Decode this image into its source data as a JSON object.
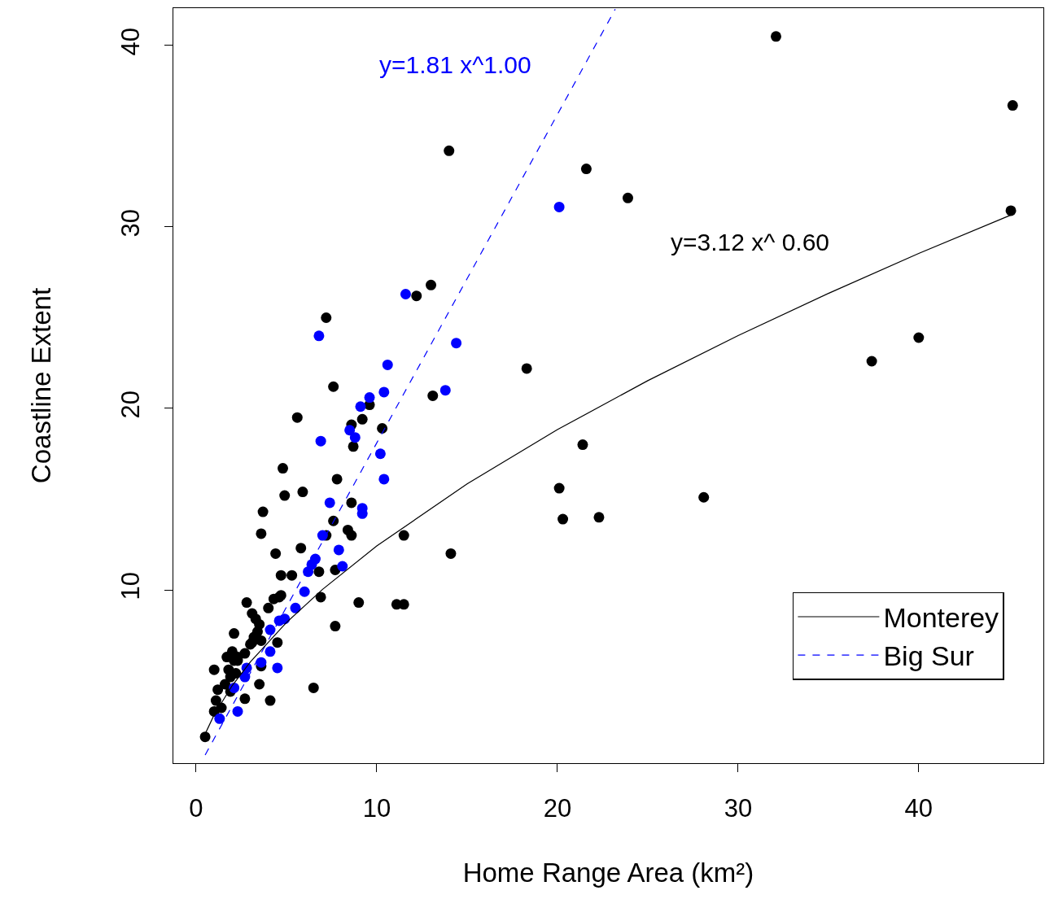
{
  "chart_data": {
    "type": "scatter",
    "xlabel": "Home Range Area (km²)",
    "ylabel": "Coastline Extent",
    "xlim": [
      -1.26,
      46.9
    ],
    "ylim": [
      0.45,
      42.06
    ],
    "xticks": [
      0,
      10,
      20,
      30,
      40
    ],
    "yticks": [
      10,
      20,
      30,
      40
    ],
    "grid": false,
    "legend": "bottom right",
    "marker": "circle",
    "series": [
      {
        "type": "scatter",
        "color": "#000000",
        "x": [
          32.1,
          45.2,
          45.1,
          14.0,
          21.6,
          23.9,
          40.0,
          37.4,
          18.3,
          21.4,
          20.1,
          20.3,
          22.3,
          28.1,
          14.1,
          11.5,
          11.1,
          11.5,
          13.0,
          12.2,
          13.1,
          10.3,
          7.2,
          7.6,
          5.6,
          4.8,
          4.9,
          5.9,
          3.7,
          3.6,
          7.8,
          8.6,
          8.7,
          9.2,
          9.6,
          8.6,
          7.6,
          8.4,
          8.6,
          7.2,
          5.8,
          4.4,
          6.8,
          7.7,
          5.3,
          4.7,
          6.9,
          9.0,
          7.7,
          6.5,
          4.1,
          4.5,
          4.6,
          2.8,
          3.1,
          3.3,
          3.5,
          4.0,
          4.3,
          4.7,
          3.4,
          3.2,
          3.6,
          3.1,
          3.0,
          2.1,
          2.7,
          2.3,
          2.0,
          1.7,
          2.1,
          2.3,
          1.0,
          1.8,
          2.2,
          1.9,
          1.6,
          1.2,
          1.9,
          3.6,
          3.5,
          2.7,
          1.1,
          1.4,
          1.0,
          0.5
        ],
        "values": [
          40.5,
          36.7,
          30.9,
          34.2,
          33.2,
          31.6,
          23.9,
          22.6,
          22.2,
          18.0,
          15.6,
          13.9,
          14.0,
          15.1,
          12.0,
          13.0,
          9.2,
          9.2,
          26.8,
          26.2,
          20.7,
          18.9,
          25.0,
          21.2,
          19.5,
          16.7,
          15.2,
          15.4,
          14.3,
          13.1,
          16.1,
          19.1,
          17.9,
          19.4,
          20.2,
          14.8,
          13.8,
          13.3,
          13.0,
          13.0,
          12.3,
          12.0,
          11.0,
          11.1,
          10.8,
          10.8,
          9.6,
          9.3,
          8.0,
          4.6,
          3.9,
          7.1,
          9.6,
          9.3,
          8.7,
          8.4,
          8.1,
          9.0,
          9.5,
          9.7,
          7.7,
          7.4,
          7.2,
          7.1,
          7.0,
          7.6,
          6.5,
          6.3,
          6.6,
          6.3,
          6.1,
          6.1,
          5.6,
          5.6,
          5.4,
          5.2,
          4.8,
          4.5,
          4.4,
          5.8,
          4.8,
          4.0,
          3.9,
          3.5,
          3.3,
          1.9
        ]
      },
      {
        "type": "scatter",
        "color": "#0000ff",
        "x": [
          20.1,
          11.6,
          14.4,
          10.6,
          13.8,
          10.4,
          9.6,
          9.1,
          6.8,
          6.9,
          8.5,
          8.8,
          10.2,
          10.4,
          7.4,
          9.2,
          9.2,
          7.0,
          7.9,
          8.1,
          6.6,
          6.4,
          6.2,
          6.0,
          5.5,
          4.9,
          4.6,
          4.1,
          4.1,
          3.6,
          4.5,
          2.7,
          2.8,
          2.1,
          2.3,
          1.3
        ],
        "values": [
          31.1,
          26.3,
          23.6,
          22.4,
          21.0,
          20.9,
          20.6,
          20.1,
          24.0,
          18.2,
          18.8,
          18.4,
          17.5,
          16.1,
          14.8,
          14.5,
          14.2,
          13.0,
          12.2,
          11.3,
          11.7,
          11.4,
          11.0,
          9.9,
          9.0,
          8.4,
          8.3,
          7.8,
          6.6,
          6.0,
          5.7,
          5.2,
          5.7,
          4.6,
          3.3,
          2.9
        ]
      },
      {
        "type": "line",
        "name": "Big Sur",
        "color": "#0000ff",
        "line_style": "dashed",
        "marker": "none",
        "x": [
          0.5,
          5,
          10,
          15,
          20,
          23.2
        ],
        "values": [
          0.9,
          9.05,
          18.1,
          27.15,
          36.2,
          42.0
        ]
      },
      {
        "type": "line",
        "name": "Monterey",
        "color": "#000000",
        "line_style": "solid",
        "marker": "none",
        "x": [
          0.5,
          1,
          2,
          3,
          5,
          7,
          10,
          15,
          20,
          25,
          30,
          35,
          40,
          45.2
        ],
        "values": [
          2.06,
          3.12,
          4.73,
          6.03,
          8.2,
          10.03,
          12.42,
          15.84,
          18.83,
          21.53,
          24.01,
          26.34,
          28.54,
          30.7
        ]
      }
    ],
    "annotations": [
      "y=1.81 x^1.00",
      "y=3.12 x^ 0.60"
    ]
  }
}
